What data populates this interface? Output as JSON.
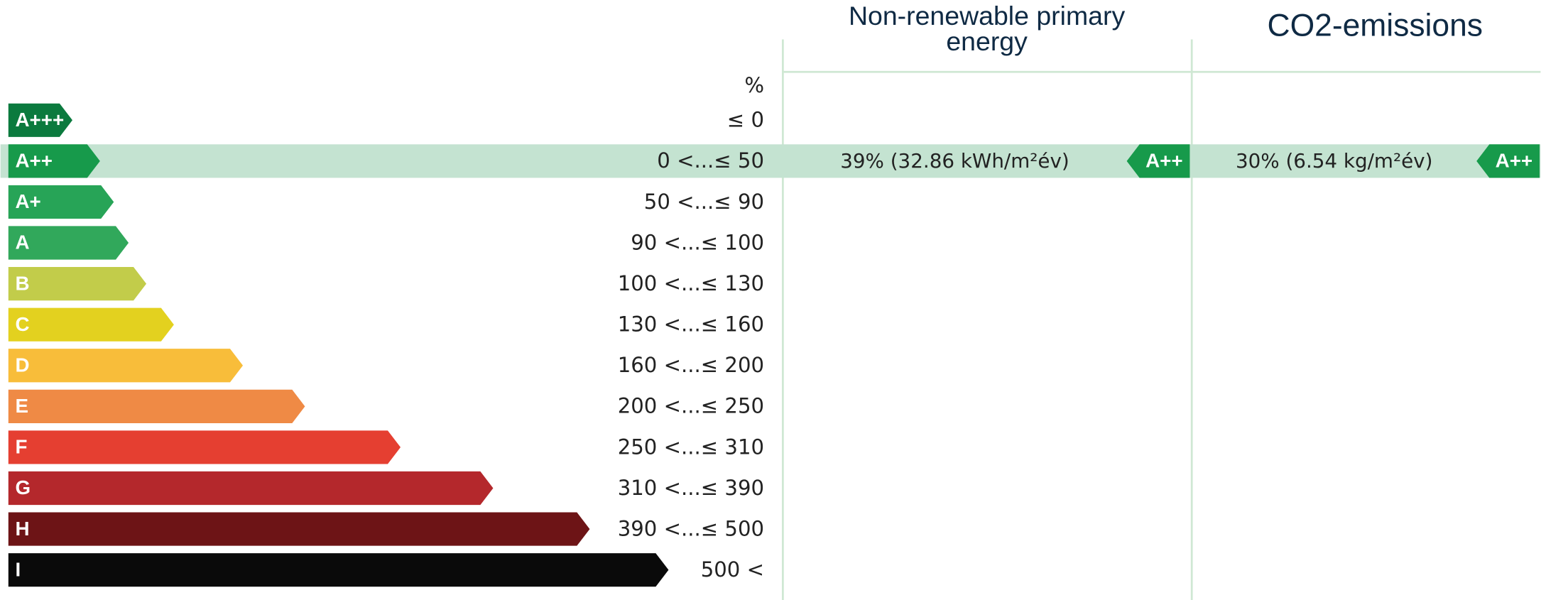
{
  "header": {
    "unit": "%",
    "columns": [
      "Non-renewable primary energy",
      "CO2-emissions"
    ]
  },
  "classes": [
    {
      "label": "A+++",
      "range": "≤ 0",
      "color": "#0b7a3e"
    },
    {
      "label": "A++",
      "range": "0 <...≤ 50",
      "color": "#179a4b"
    },
    {
      "label": "A+",
      "range": "50 <...≤ 90",
      "color": "#27a457"
    },
    {
      "label": "A",
      "range": "90 <...≤ 100",
      "color": "#31a85b"
    },
    {
      "label": "B",
      "range": "100 <...≤ 130",
      "color": "#c2cc4a"
    },
    {
      "label": "C",
      "range": "130 <...≤ 160",
      "color": "#e3d11f"
    },
    {
      "label": "D",
      "range": "160 <...≤ 200",
      "color": "#f8bd3a"
    },
    {
      "label": "E",
      "range": "200 <...≤ 250",
      "color": "#ef8a45"
    },
    {
      "label": "F",
      "range": "250 <...≤ 310",
      "color": "#e53f31"
    },
    {
      "label": "G",
      "range": "310 <...≤ 390",
      "color": "#b4282c"
    },
    {
      "label": "H",
      "range": "390 <...≤ 500",
      "color": "#6d1416"
    },
    {
      "label": "I",
      "range": "500 <",
      "color": "#0a0a0a"
    }
  ],
  "results": [
    {
      "text": "39% (32.86 kWh/m²év)",
      "class": "A++"
    },
    {
      "text": "30% (6.54 kg/m²év)",
      "class": "A++"
    }
  ]
}
